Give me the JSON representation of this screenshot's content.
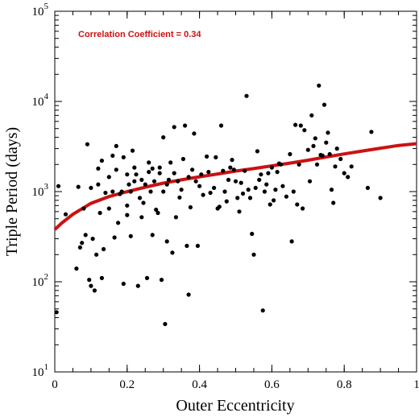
{
  "chart_data": {
    "type": "scatter",
    "xlabel": "Outer Eccentricity",
    "ylabel": "Triple Period (days)",
    "xlim": [
      0,
      1
    ],
    "ylim": [
      10,
      100000
    ],
    "yscale": "log",
    "x_ticks": [
      0,
      0.2,
      0.4,
      0.6,
      0.8,
      1
    ],
    "x_tick_labels": [
      "0",
      "0.2",
      "0.4",
      "0.6",
      "0.8",
      "1"
    ],
    "y_ticks": [
      10,
      100,
      1000,
      10000,
      100000
    ],
    "y_tick_labels": [
      {
        "base": "10",
        "exp": "1"
      },
      {
        "base": "10",
        "exp": "2"
      },
      {
        "base": "10",
        "exp": "3"
      },
      {
        "base": "10",
        "exp": "4"
      },
      {
        "base": "10",
        "exp": "5"
      }
    ],
    "annotation": "Correlation Coefficient = 0.34",
    "colors": {
      "points": "#000000",
      "fit_line": "#cc1111",
      "annotation": "#cc1111"
    },
    "fit_line": [
      [
        0,
        380
      ],
      [
        0.02,
        450
      ],
      [
        0.05,
        560
      ],
      [
        0.1,
        740
      ],
      [
        0.15,
        880
      ],
      [
        0.2,
        1000
      ],
      [
        0.25,
        1120
      ],
      [
        0.3,
        1240
      ],
      [
        0.35,
        1350
      ],
      [
        0.4,
        1460
      ],
      [
        0.45,
        1570
      ],
      [
        0.5,
        1690
      ],
      [
        0.55,
        1800
      ],
      [
        0.6,
        1930
      ],
      [
        0.65,
        2070
      ],
      [
        0.7,
        2230
      ],
      [
        0.75,
        2420
      ],
      [
        0.8,
        2620
      ],
      [
        0.85,
        2820
      ],
      [
        0.9,
        3030
      ],
      [
        0.95,
        3250
      ],
      [
        1,
        3400
      ]
    ],
    "points": [
      [
        0.005,
        46
      ],
      [
        0.01,
        1150
      ],
      [
        0.03,
        560
      ],
      [
        0.06,
        140
      ],
      [
        0.065,
        1130
      ],
      [
        0.07,
        240
      ],
      [
        0.075,
        270
      ],
      [
        0.08,
        650
      ],
      [
        0.085,
        330
      ],
      [
        0.09,
        3350
      ],
      [
        0.095,
        105
      ],
      [
        0.1,
        90
      ],
      [
        0.1,
        1100
      ],
      [
        0.105,
        300
      ],
      [
        0.11,
        80
      ],
      [
        0.115,
        200
      ],
      [
        0.12,
        1200
      ],
      [
        0.12,
        1800
      ],
      [
        0.125,
        580
      ],
      [
        0.13,
        110
      ],
      [
        0.13,
        2200
      ],
      [
        0.135,
        230
      ],
      [
        0.14,
        970
      ],
      [
        0.15,
        1450
      ],
      [
        0.15,
        650
      ],
      [
        0.16,
        2500
      ],
      [
        0.16,
        1000
      ],
      [
        0.165,
        310
      ],
      [
        0.17,
        1750
      ],
      [
        0.17,
        3200
      ],
      [
        0.175,
        450
      ],
      [
        0.18,
        940
      ],
      [
        0.185,
        1000
      ],
      [
        0.19,
        95
      ],
      [
        0.19,
        2400
      ],
      [
        0.2,
        1550
      ],
      [
        0.2,
        700
      ],
      [
        0.2,
        550
      ],
      [
        0.205,
        1200
      ],
      [
        0.21,
        1000
      ],
      [
        0.21,
        320
      ],
      [
        0.215,
        2850
      ],
      [
        0.22,
        1300
      ],
      [
        0.22,
        1850
      ],
      [
        0.225,
        1550
      ],
      [
        0.23,
        90
      ],
      [
        0.235,
        850
      ],
      [
        0.24,
        1350
      ],
      [
        0.24,
        520
      ],
      [
        0.245,
        750
      ],
      [
        0.25,
        1200
      ],
      [
        0.255,
        110
      ],
      [
        0.26,
        1650
      ],
      [
        0.26,
        2100
      ],
      [
        0.265,
        1000
      ],
      [
        0.27,
        330
      ],
      [
        0.27,
        1800
      ],
      [
        0.275,
        1300
      ],
      [
        0.28,
        630
      ],
      [
        0.285,
        580
      ],
      [
        0.29,
        1600
      ],
      [
        0.29,
        1850
      ],
      [
        0.295,
        105
      ],
      [
        0.3,
        1000
      ],
      [
        0.3,
        4000
      ],
      [
        0.305,
        34
      ],
      [
        0.31,
        280
      ],
      [
        0.31,
        1200
      ],
      [
        0.315,
        1350
      ],
      [
        0.32,
        2100
      ],
      [
        0.325,
        210
      ],
      [
        0.33,
        1600
      ],
      [
        0.33,
        5200
      ],
      [
        0.335,
        520
      ],
      [
        0.34,
        1300
      ],
      [
        0.345,
        860
      ],
      [
        0.35,
        1050
      ],
      [
        0.355,
        2300
      ],
      [
        0.36,
        5400
      ],
      [
        0.365,
        250
      ],
      [
        0.37,
        72
      ],
      [
        0.37,
        1450
      ],
      [
        0.375,
        670
      ],
      [
        0.38,
        1750
      ],
      [
        0.385,
        4400
      ],
      [
        0.39,
        1300
      ],
      [
        0.395,
        250
      ],
      [
        0.4,
        1150
      ],
      [
        0.405,
        1550
      ],
      [
        0.41,
        920
      ],
      [
        0.42,
        2450
      ],
      [
        0.425,
        1650
      ],
      [
        0.43,
        970
      ],
      [
        0.44,
        1100
      ],
      [
        0.445,
        2400
      ],
      [
        0.45,
        650
      ],
      [
        0.455,
        680
      ],
      [
        0.46,
        5400
      ],
      [
        0.465,
        1700
      ],
      [
        0.47,
        1000
      ],
      [
        0.475,
        780
      ],
      [
        0.48,
        1350
      ],
      [
        0.485,
        1850
      ],
      [
        0.49,
        2250
      ],
      [
        0.495,
        1750
      ],
      [
        0.5,
        1300
      ],
      [
        0.505,
        850
      ],
      [
        0.51,
        600
      ],
      [
        0.515,
        1250
      ],
      [
        0.52,
        950
      ],
      [
        0.525,
        1700
      ],
      [
        0.53,
        11500
      ],
      [
        0.535,
        1050
      ],
      [
        0.54,
        850
      ],
      [
        0.545,
        340
      ],
      [
        0.55,
        200
      ],
      [
        0.555,
        1100
      ],
      [
        0.56,
        2800
      ],
      [
        0.565,
        1350
      ],
      [
        0.57,
        1550
      ],
      [
        0.575,
        48
      ],
      [
        0.58,
        1000
      ],
      [
        0.585,
        1200
      ],
      [
        0.59,
        1600
      ],
      [
        0.595,
        720
      ],
      [
        0.6,
        1850
      ],
      [
        0.605,
        800
      ],
      [
        0.61,
        1050
      ],
      [
        0.615,
        1650
      ],
      [
        0.62,
        2050
      ],
      [
        0.625,
        2000
      ],
      [
        0.63,
        1150
      ],
      [
        0.64,
        880
      ],
      [
        0.65,
        2600
      ],
      [
        0.655,
        280
      ],
      [
        0.66,
        1000
      ],
      [
        0.665,
        5500
      ],
      [
        0.67,
        720
      ],
      [
        0.675,
        2000
      ],
      [
        0.68,
        5400
      ],
      [
        0.685,
        650
      ],
      [
        0.69,
        4800
      ],
      [
        0.7,
        2900
      ],
      [
        0.705,
        1300
      ],
      [
        0.71,
        7000
      ],
      [
        0.715,
        3200
      ],
      [
        0.72,
        3900
      ],
      [
        0.725,
        2000
      ],
      [
        0.73,
        15000
      ],
      [
        0.735,
        2550
      ],
      [
        0.74,
        2500
      ],
      [
        0.745,
        9200
      ],
      [
        0.75,
        3500
      ],
      [
        0.755,
        4500
      ],
      [
        0.76,
        2600
      ],
      [
        0.765,
        1050
      ],
      [
        0.77,
        750
      ],
      [
        0.775,
        1900
      ],
      [
        0.78,
        3000
      ],
      [
        0.79,
        2300
      ],
      [
        0.8,
        1600
      ],
      [
        0.81,
        1450
      ],
      [
        0.82,
        1900
      ],
      [
        0.865,
        1100
      ],
      [
        0.875,
        4600
      ],
      [
        0.9,
        850
      ]
    ]
  }
}
